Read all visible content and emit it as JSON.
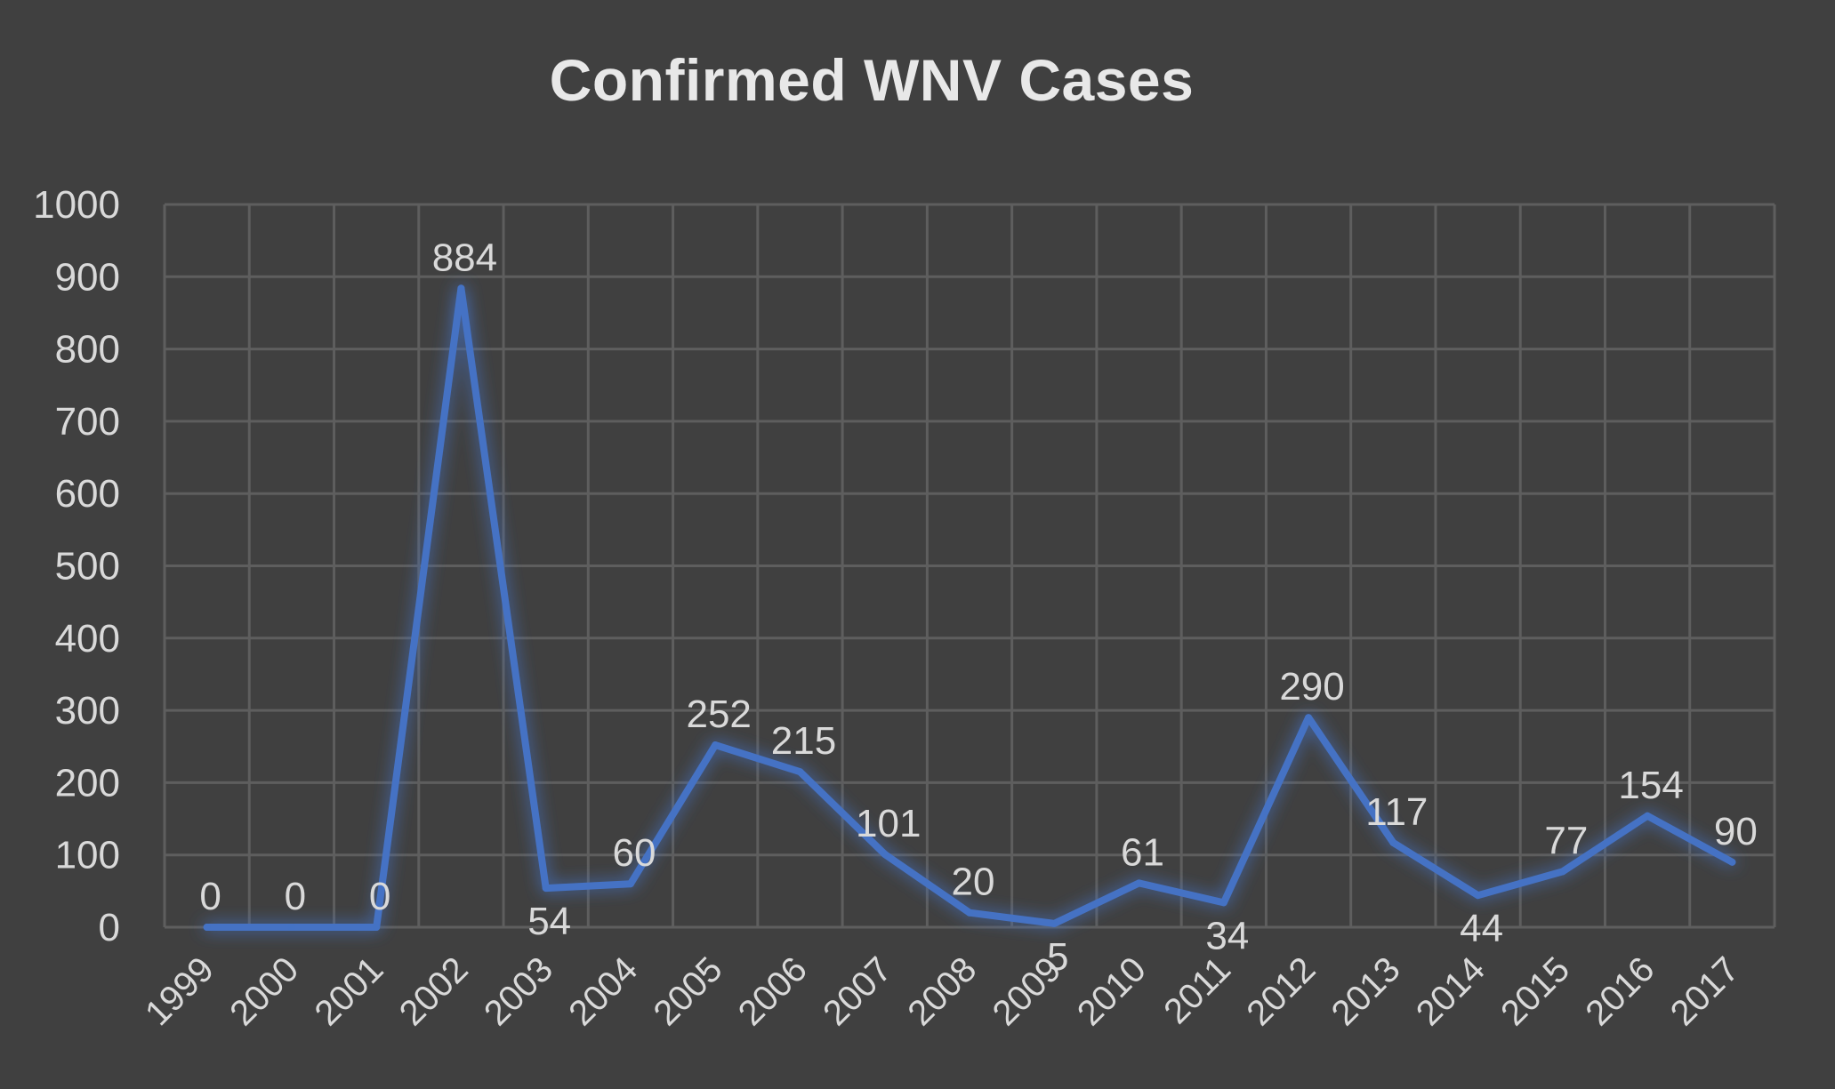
{
  "chart_data": {
    "type": "line",
    "title": "Confirmed WNV Cases",
    "categories": [
      "1999",
      "2000",
      "2001",
      "2002",
      "2003",
      "2004",
      "2005",
      "2006",
      "2007",
      "2008",
      "2009",
      "2010",
      "2011",
      "2012",
      "2013",
      "2014",
      "2015",
      "2016",
      "2017"
    ],
    "series": [
      {
        "values": [
          0,
          0,
          0,
          884,
          54,
          60,
          252,
          215,
          101,
          20,
          5,
          61,
          34,
          290,
          117,
          44,
          77,
          154,
          90
        ],
        "color": "#4472c4",
        "data_labels": true
      }
    ],
    "ylim": [
      0,
      1000
    ],
    "yticks": [
      0,
      100,
      200,
      300,
      400,
      500,
      600,
      700,
      800,
      900,
      1000
    ],
    "grid": true,
    "legend": "none",
    "colors": {
      "background": "#404040",
      "grid": "#5e5e5e",
      "text": "#d9d9d9",
      "line": "#4472c4"
    }
  }
}
